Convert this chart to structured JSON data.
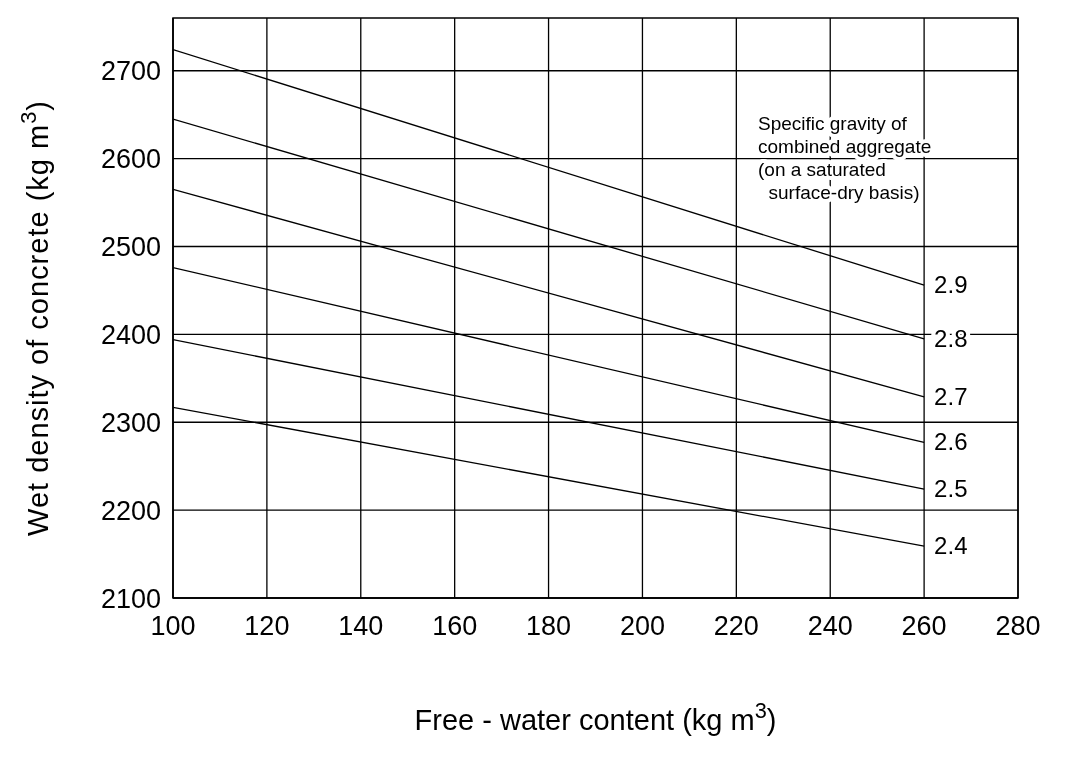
{
  "chart_data": {
    "type": "line",
    "xlabel": "Free - water content (kg m$^{3}$)",
    "ylabel": "Wet density of concrete  (kg m$^{3}$)",
    "x": [
      100,
      260
    ],
    "series": [
      {
        "name": "2.9",
        "color": "#000000",
        "values": [
          2724,
          2456
        ]
      },
      {
        "name": "2.8",
        "color": "#000000",
        "values": [
          2645,
          2395
        ]
      },
      {
        "name": "2.7",
        "color": "#000000",
        "values": [
          2565,
          2329
        ]
      },
      {
        "name": "2.6",
        "color": "#000000",
        "values": [
          2476,
          2277
        ]
      },
      {
        "name": "2.5",
        "color": "#000000",
        "values": [
          2394,
          2224
        ]
      },
      {
        "name": "2.4",
        "color": "#000000",
        "values": [
          2317,
          2159
        ]
      }
    ],
    "xlim": [
      100,
      280
    ],
    "xticks": [
      100,
      120,
      140,
      160,
      180,
      200,
      220,
      240,
      260,
      280
    ],
    "ylim": [
      2100,
      2760
    ],
    "yticks": [
      2100,
      2200,
      2300,
      2400,
      2500,
      2600,
      2700
    ],
    "grid": true,
    "marker": "none",
    "line_style": "solid",
    "annotations": [
      "Specific gravity of\ncombined aggregate\n(on a saturated\n  surface-dry basis)"
    ]
  }
}
